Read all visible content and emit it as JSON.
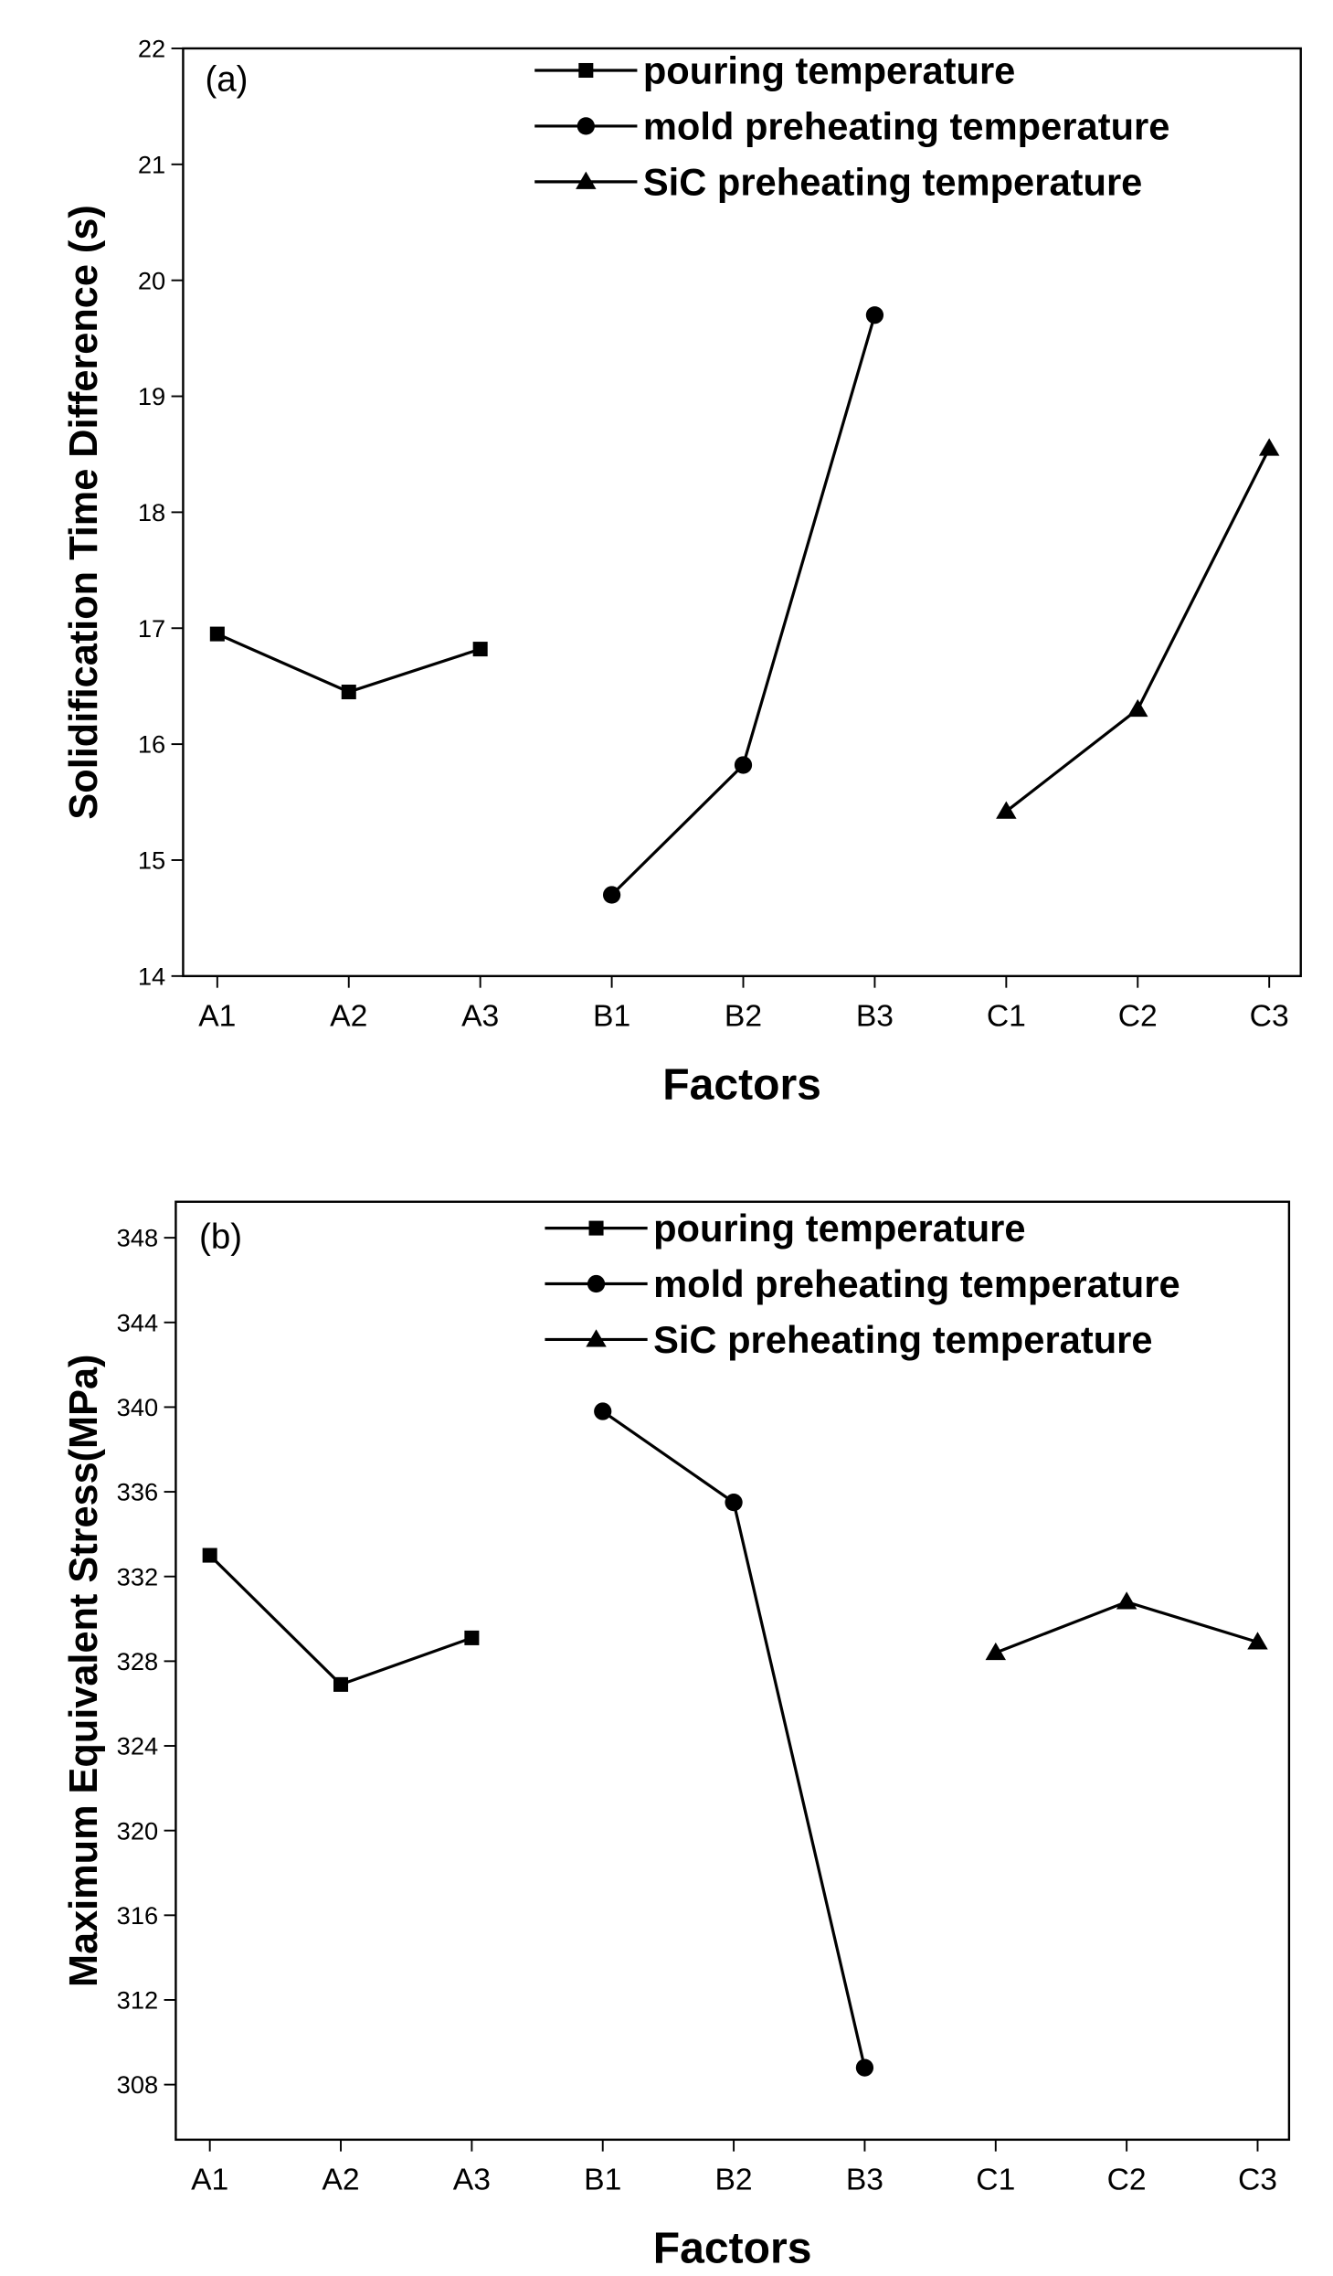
{
  "chart_data": [
    {
      "type": "line",
      "annotation": "(a)",
      "y_label": "Solidification Time Difference (s)",
      "x_label": "Factors",
      "categories": [
        "A1",
        "A2",
        "A3",
        "B1",
        "B2",
        "B3",
        "C1",
        "C2",
        "C3"
      ],
      "ylim": [
        14,
        22
      ],
      "yticks": [
        14,
        15,
        16,
        17,
        18,
        19,
        20,
        21,
        22
      ],
      "series": [
        {
          "name": "pouring temperature",
          "color": "#000000",
          "marker": "square",
          "values": [
            16.95,
            16.45,
            16.82,
            null,
            null,
            null,
            null,
            null,
            null
          ]
        },
        {
          "name": "mold preheating temperature",
          "color": "#000000",
          "marker": "circle",
          "values": [
            null,
            null,
            null,
            14.7,
            15.82,
            19.7,
            null,
            null,
            null
          ]
        },
        {
          "name": "SiC preheating temperature",
          "color": "#000000",
          "marker": "triangle",
          "values": [
            null,
            null,
            null,
            null,
            null,
            null,
            15.42,
            16.3,
            18.55
          ]
        }
      ]
    },
    {
      "type": "line",
      "annotation": "(b)",
      "y_label": "Maximum Equivalent Stress(MPa)",
      "x_label": "Factors",
      "categories": [
        "A1",
        "A2",
        "A3",
        "B1",
        "B2",
        "B3",
        "C1",
        "C2",
        "C3"
      ],
      "ylim": [
        305.4,
        349.7
      ],
      "yticks": [
        308,
        312,
        316,
        320,
        324,
        328,
        332,
        336,
        340,
        344,
        348
      ],
      "series": [
        {
          "name": "pouring temperature",
          "color": "#000000",
          "marker": "square",
          "values": [
            333.0,
            326.9,
            329.1,
            null,
            null,
            null,
            null,
            null,
            null
          ]
        },
        {
          "name": "mold preheating temperature",
          "color": "#000000",
          "marker": "circle",
          "values": [
            null,
            null,
            null,
            339.8,
            335.5,
            308.8,
            null,
            null,
            null
          ]
        },
        {
          "name": "SiC preheating temperature",
          "color": "#000000",
          "marker": "triangle",
          "values": [
            null,
            null,
            null,
            null,
            null,
            null,
            328.4,
            330.8,
            328.9
          ]
        }
      ]
    }
  ]
}
